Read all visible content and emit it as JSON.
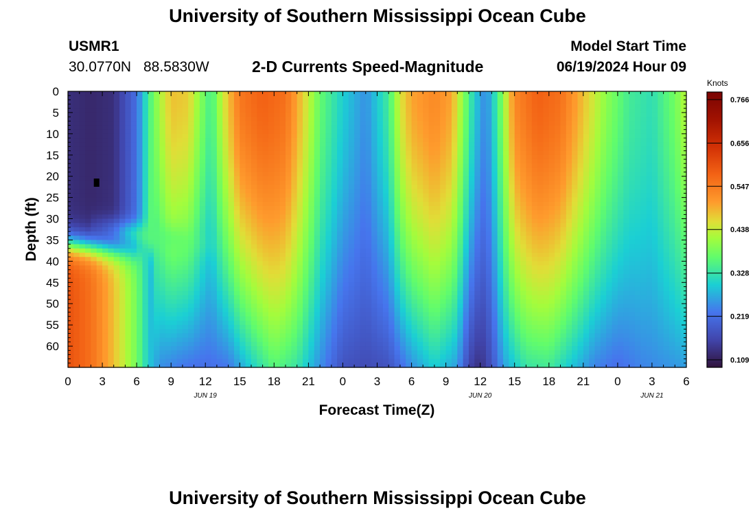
{
  "page": {
    "title_top": "University of Southern Mississippi Ocean Cube",
    "title_bottom": "University of Southern Mississippi Ocean Cube",
    "station": "USMR1",
    "lat": "30.0770N",
    "lon": "88.5830W",
    "plot_title": "2-D Currents Speed-Magnitude",
    "model_start_label": "Model Start Time",
    "model_start_value": "06/19/2024 Hour 09"
  },
  "colors": {
    "text": "#000000",
    "background": "#ffffff"
  },
  "chart_data": {
    "type": "heatmap",
    "title": "2-D Currents Speed-Magnitude",
    "xlabel": "Forecast Time(Z)",
    "ylabel": "Depth (ft)",
    "xlim": [
      0,
      54
    ],
    "ylim": [
      0,
      65
    ],
    "x_ticks": [
      {
        "v": 0,
        "label": "0"
      },
      {
        "v": 3,
        "label": "3"
      },
      {
        "v": 6,
        "label": "6"
      },
      {
        "v": 9,
        "label": "9"
      },
      {
        "v": 12,
        "label": "12"
      },
      {
        "v": 15,
        "label": "15"
      },
      {
        "v": 18,
        "label": "18"
      },
      {
        "v": 21,
        "label": "21"
      },
      {
        "v": 24,
        "label": "0"
      },
      {
        "v": 27,
        "label": "3"
      },
      {
        "v": 30,
        "label": "6"
      },
      {
        "v": 33,
        "label": "9"
      },
      {
        "v": 36,
        "label": "12"
      },
      {
        "v": 39,
        "label": "15"
      },
      {
        "v": 42,
        "label": "18"
      },
      {
        "v": 45,
        "label": "21"
      },
      {
        "v": 48,
        "label": "0"
      },
      {
        "v": 51,
        "label": "3"
      },
      {
        "v": 54,
        "label": "6"
      }
    ],
    "date_labels": [
      {
        "v": 12,
        "label": "JUN 19"
      },
      {
        "v": 36,
        "label": "JUN 20"
      },
      {
        "v": 51,
        "label": "JUN 21"
      }
    ],
    "y_ticks": [
      0,
      5,
      10,
      15,
      20,
      25,
      30,
      35,
      40,
      45,
      50,
      55,
      60
    ],
    "colorbar": {
      "title": "Knots",
      "min": 0.09,
      "max": 0.785,
      "ticks": [
        0.766,
        0.656,
        0.547,
        0.438,
        0.328,
        0.219,
        0.109
      ]
    },
    "marker": {
      "x": 2.5,
      "y": 21.5,
      "label": "station depth marker"
    },
    "top_profile": {
      "x": [
        0,
        2,
        4,
        6,
        7,
        8,
        9,
        10.5,
        11.5,
        12.5,
        13.5,
        15,
        17,
        19,
        20.5,
        22,
        24,
        26,
        28,
        29,
        30,
        32,
        33.5,
        34.5,
        35.5,
        36.5,
        37.5,
        39,
        41,
        43,
        45,
        47,
        49,
        51,
        53,
        54
      ],
      "v": [
        0.13,
        0.12,
        0.13,
        0.22,
        0.34,
        0.42,
        0.48,
        0.47,
        0.4,
        0.34,
        0.44,
        0.55,
        0.58,
        0.56,
        0.47,
        0.37,
        0.3,
        0.25,
        0.34,
        0.45,
        0.5,
        0.53,
        0.5,
        0.4,
        0.3,
        0.24,
        0.34,
        0.53,
        0.58,
        0.56,
        0.48,
        0.4,
        0.34,
        0.32,
        0.38,
        0.43
      ]
    },
    "bottom_profile": {
      "x": [
        0,
        2,
        4,
        6,
        7,
        8,
        10,
        12,
        14,
        16,
        18,
        20,
        22,
        24,
        26,
        28,
        30,
        32,
        34,
        35,
        36,
        37,
        38,
        40,
        42,
        44,
        46,
        48,
        50,
        54
      ],
      "v": [
        0.6,
        0.56,
        0.48,
        0.38,
        0.3,
        0.25,
        0.23,
        0.22,
        0.23,
        0.3,
        0.36,
        0.33,
        0.25,
        0.18,
        0.17,
        0.18,
        0.25,
        0.3,
        0.26,
        0.16,
        0.13,
        0.18,
        0.26,
        0.33,
        0.34,
        0.29,
        0.24,
        0.22,
        0.24,
        0.26
      ]
    }
  }
}
